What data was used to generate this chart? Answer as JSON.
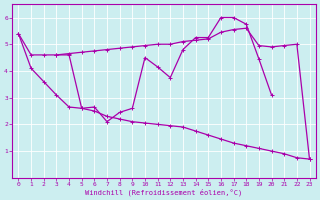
{
  "xlabel": "Windchill (Refroidissement éolien,°C)",
  "xlim": [
    -0.5,
    23.5
  ],
  "ylim": [
    0,
    6.5
  ],
  "xticks": [
    0,
    1,
    2,
    3,
    4,
    5,
    6,
    7,
    8,
    9,
    10,
    11,
    12,
    13,
    14,
    15,
    16,
    17,
    18,
    19,
    20,
    21,
    22,
    23
  ],
  "yticks": [
    1,
    2,
    3,
    4,
    5,
    6
  ],
  "bg_color": "#cceef0",
  "line_color": "#aa00aa",
  "line1_x": [
    0,
    1,
    2,
    3,
    4,
    5,
    6,
    7,
    8,
    9,
    10,
    11,
    12,
    13,
    14,
    15,
    16,
    17,
    18,
    19,
    20,
    21,
    22,
    23
  ],
  "line1_y": [
    5.4,
    4.6,
    4.6,
    4.6,
    4.65,
    4.7,
    4.75,
    4.8,
    4.85,
    4.9,
    4.95,
    5.0,
    5.0,
    5.1,
    5.15,
    5.2,
    5.45,
    5.55,
    5.6,
    4.95,
    4.9,
    4.95,
    5.0,
    0.7
  ],
  "line2_x": [
    0,
    1,
    2,
    3,
    4,
    5,
    6,
    7,
    8,
    9,
    10,
    11,
    12,
    13,
    14,
    15,
    16,
    17,
    18,
    19,
    20,
    21,
    22,
    23
  ],
  "line2_y": [
    5.4,
    4.1,
    3.6,
    3.1,
    2.65,
    2.6,
    2.5,
    2.3,
    2.2,
    2.1,
    2.05,
    2.0,
    1.95,
    1.9,
    1.75,
    1.6,
    1.45,
    1.3,
    1.2,
    1.1,
    1.0,
    0.9,
    0.75,
    0.7
  ],
  "line3_x": [
    3,
    4,
    5,
    6,
    7,
    8,
    9,
    10,
    11,
    12,
    13,
    14,
    15,
    16,
    17,
    18,
    19,
    20
  ],
  "line3_y": [
    4.6,
    4.6,
    2.6,
    2.65,
    2.1,
    2.45,
    2.6,
    4.5,
    4.15,
    3.75,
    4.8,
    5.25,
    5.25,
    6.0,
    6.0,
    5.75,
    4.45,
    3.1
  ]
}
